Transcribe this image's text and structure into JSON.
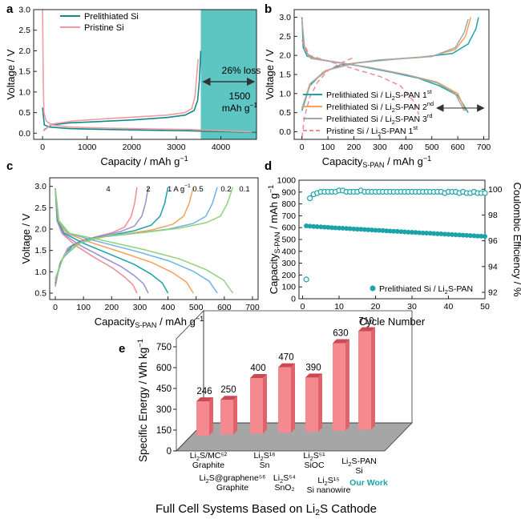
{
  "chart_data": [
    {
      "panel": "a",
      "type": "line",
      "xlabel": "Capacity / mAh g⁻¹",
      "ylabel": "Voltage / V",
      "xlim": [
        -200,
        4800
      ],
      "ylim": [
        -0.15,
        3.0
      ],
      "xticks": [
        0,
        1000,
        2000,
        3000,
        4000
      ],
      "yticks": [
        0.0,
        0.5,
        1.0,
        1.5,
        2.0,
        2.5,
        3.0
      ],
      "legend": "top-left",
      "shaded": {
        "x_range": [
          3550,
          4800
        ],
        "label_top": "26% loss",
        "label_bottom_1": "1500",
        "label_bottom_2": "mAh g⁻¹",
        "color": "#5ec6c2"
      },
      "series": [
        {
          "name": "Prelithiated Si",
          "color": "#0e8a8e",
          "segments": [
            [
              [
                0,
                0.62
              ],
              [
                40,
                0.2
              ],
              [
                150,
                0.15
              ],
              [
                600,
                0.11
              ],
              [
                1500,
                0.09
              ],
              [
                2500,
                0.07
              ],
              [
                3200,
                0.06
              ],
              [
                3550,
                0.05
              ],
              [
                4200,
                0.035
              ],
              [
                4800,
                0.02
              ]
            ],
            [
              [
                30,
                0.08
              ],
              [
                200,
                0.2
              ],
              [
                600,
                0.25
              ],
              [
                1200,
                0.28
              ],
              [
                2000,
                0.32
              ],
              [
                2800,
                0.38
              ],
              [
                3200,
                0.44
              ],
              [
                3400,
                0.55
              ],
              [
                3480,
                0.8
              ],
              [
                3520,
                1.3
              ],
              [
                3550,
                2.0
              ]
            ]
          ]
        },
        {
          "name": "Pristine Si",
          "color": "#f29aa0",
          "segments": [
            [
              [
                0,
                3.0
              ],
              [
                8,
                2.0
              ],
              [
                15,
                1.2
              ],
              [
                30,
                0.5
              ],
              [
                80,
                0.3
              ],
              [
                200,
                0.2
              ],
              [
                600,
                0.15
              ],
              [
                1500,
                0.12
              ],
              [
                2500,
                0.1
              ],
              [
                3300,
                0.09
              ],
              [
                4000,
                0.06
              ],
              [
                4700,
                0.03
              ]
            ],
            [
              [
                20,
                0.05
              ],
              [
                200,
                0.22
              ],
              [
                700,
                0.3
              ],
              [
                1400,
                0.35
              ],
              [
                2200,
                0.4
              ],
              [
                2800,
                0.44
              ],
              [
                3200,
                0.5
              ],
              [
                3350,
                0.6
              ],
              [
                3420,
                0.9
              ],
              [
                3460,
                1.4
              ],
              [
                3490,
                1.8
              ]
            ]
          ]
        }
      ]
    },
    {
      "panel": "b",
      "type": "line",
      "xlabel": "Capacity S-PAN / mAh g⁻¹",
      "ylabel": "Voltage / V",
      "xlim": [
        -30,
        720
      ],
      "ylim": [
        -0.2,
        3.2
      ],
      "xticks": [
        0,
        100,
        200,
        300,
        400,
        500,
        600,
        700
      ],
      "yticks": [
        0.0,
        0.5,
        1.0,
        1.5,
        2.0,
        2.5,
        3.0
      ],
      "legend": "bottom-left",
      "series": [
        {
          "name": "Prelithiated Si / Li₂S-PAN 1st",
          "color": "#1aa3a8",
          "dash": false,
          "segments": [
            [
              [
                0,
                3.0
              ],
              [
                5,
                2.2
              ],
              [
                20,
                1.98
              ],
              [
                80,
                1.88
              ],
              [
                200,
                1.75
              ],
              [
                350,
                1.55
              ],
              [
                450,
                1.4
              ],
              [
                530,
                1.2
              ],
              [
                600,
                0.95
              ],
              [
                640,
                0.5
              ]
            ],
            [
              [
                0,
                0.55
              ],
              [
                30,
                1.2
              ],
              [
                80,
                1.55
              ],
              [
                150,
                1.75
              ],
              [
                300,
                1.88
              ],
              [
                450,
                1.95
              ],
              [
                580,
                2.05
              ],
              [
                640,
                2.3
              ],
              [
                670,
                2.7
              ],
              [
                680,
                3.0
              ]
            ]
          ]
        },
        {
          "name": "Prelithiated Si / Li₂S-PAN 2nd",
          "color": "#f4a25b",
          "dash": false,
          "segments": [
            [
              [
                0,
                2.95
              ],
              [
                10,
                2.2
              ],
              [
                30,
                1.95
              ],
              [
                100,
                1.85
              ],
              [
                250,
                1.7
              ],
              [
                400,
                1.5
              ],
              [
                520,
                1.3
              ],
              [
                600,
                1.0
              ],
              [
                630,
                0.55
              ]
            ],
            [
              [
                0,
                0.6
              ],
              [
                30,
                1.25
              ],
              [
                90,
                1.6
              ],
              [
                200,
                1.8
              ],
              [
                350,
                1.9
              ],
              [
                500,
                1.98
              ],
              [
                590,
                2.15
              ],
              [
                630,
                2.5
              ],
              [
                650,
                3.0
              ]
            ]
          ]
        },
        {
          "name": "Prelithiated Si / Li₂S-PAN 3rd",
          "color": "#9fa8b0",
          "dash": false,
          "segments": [
            [
              [
                0,
                2.9
              ],
              [
                10,
                2.15
              ],
              [
                35,
                1.92
              ],
              [
                110,
                1.84
              ],
              [
                260,
                1.68
              ],
              [
                410,
                1.48
              ],
              [
                520,
                1.28
              ],
              [
                590,
                1.0
              ],
              [
                625,
                0.55
              ]
            ],
            [
              [
                0,
                0.62
              ],
              [
                35,
                1.28
              ],
              [
                100,
                1.62
              ],
              [
                210,
                1.8
              ],
              [
                360,
                1.9
              ],
              [
                500,
                1.97
              ],
              [
                590,
                2.2
              ],
              [
                625,
                2.6
              ],
              [
                640,
                2.95
              ]
            ]
          ]
        },
        {
          "name": "Pristine Si / Li₂S-PAN 1st",
          "color": "#f08a94",
          "dash": true,
          "segments": [
            [
              [
                0,
                2.4
              ],
              [
                30,
                2.0
              ],
              [
                100,
                1.85
              ],
              [
                200,
                1.65
              ],
              [
                300,
                1.45
              ],
              [
                380,
                1.2
              ],
              [
                430,
                0.8
              ],
              [
                450,
                0.45
              ]
            ],
            [
              [
                0,
                -0.15
              ],
              [
                10,
                0.4
              ],
              [
                30,
                0.9
              ],
              [
                60,
                1.3
              ],
              [
                100,
                1.6
              ],
              [
                150,
                1.8
              ],
              [
                200,
                1.95
              ]
            ]
          ]
        }
      ],
      "arrow": {
        "from_x": 520,
        "to_x": 700,
        "y": 0.62
      }
    },
    {
      "panel": "c",
      "type": "line",
      "xlabel": "Capacity S-PAN / mAh g⁻¹",
      "ylabel": "Voltage / V",
      "xlim": [
        -20,
        720
      ],
      "ylim": [
        0.35,
        3.2
      ],
      "xticks": [
        0,
        100,
        200,
        300,
        400,
        500,
        600,
        700
      ],
      "yticks": [
        0.5,
        1.0,
        1.5,
        2.0,
        2.5,
        3.0
      ],
      "rate_labels": [
        "4",
        "2",
        "1 A g⁻¹",
        "0.5",
        "0.2",
        "0.1"
      ],
      "series": [
        {
          "rate": "4",
          "color": "#f08a94",
          "capacity": 290
        },
        {
          "rate": "2",
          "color": "#9a8fd0",
          "capacity": 330
        },
        {
          "rate": "1",
          "color": "#1aa3a8",
          "capacity": 400
        },
        {
          "rate": "0.5",
          "color": "#f4a25b",
          "capacity": 490
        },
        {
          "rate": "0.2",
          "color": "#6fb2e6",
          "capacity": 575
        },
        {
          "rate": "0.1",
          "color": "#8fd27a",
          "capacity": 630
        }
      ]
    },
    {
      "panel": "d",
      "type": "scatter",
      "xlabel": "Cycle Number",
      "ylabel": "Capacity S-PAN / mAh g⁻¹",
      "y2label": "Coulombic Efficiency / %",
      "xlim": [
        -1,
        50
      ],
      "ylim": [
        0,
        1000
      ],
      "y2lim": [
        91.5,
        100.7
      ],
      "xticks": [
        0,
        10,
        20,
        30,
        40,
        50
      ],
      "yticks": [
        0,
        100,
        200,
        300,
        400,
        500,
        600,
        700,
        800,
        900,
        1000
      ],
      "y2ticks": [
        92,
        94,
        96,
        98,
        100
      ],
      "legend": "bottom-right",
      "series": [
        {
          "name": "Prelithiated Si / Li₂S-PAN",
          "color": "#1aa3a8",
          "filled": true,
          "x": [
            1,
            2,
            3,
            4,
            5,
            6,
            7,
            8,
            9,
            10,
            11,
            12,
            13,
            14,
            15,
            16,
            17,
            18,
            19,
            20,
            21,
            22,
            23,
            24,
            25,
            26,
            27,
            28,
            29,
            30,
            31,
            32,
            33,
            34,
            35,
            36,
            37,
            38,
            39,
            40,
            41,
            42,
            43,
            44,
            45,
            46,
            47,
            48,
            49,
            50
          ],
          "y": [
            615,
            612,
            610,
            608,
            606,
            604,
            602,
            600,
            598,
            596,
            595,
            593,
            591,
            589,
            587,
            586,
            584,
            582,
            580,
            578,
            577,
            575,
            573,
            571,
            569,
            568,
            566,
            564,
            562,
            561,
            559,
            557,
            555,
            554,
            552,
            550,
            548,
            547,
            545,
            543,
            541,
            540,
            538,
            536,
            535,
            533,
            531,
            529,
            528,
            526
          ]
        },
        {
          "name": "Coulombic Efficiency",
          "color": "#1aa3a8",
          "filled": false,
          "x": [
            1,
            2,
            3,
            4,
            5,
            6,
            7,
            8,
            9,
            10,
            11,
            12,
            13,
            14,
            15,
            16,
            17,
            18,
            19,
            20,
            21,
            22,
            23,
            24,
            25,
            26,
            27,
            28,
            29,
            30,
            31,
            32,
            33,
            34,
            35,
            36,
            37,
            38,
            39,
            40,
            41,
            42,
            43,
            44,
            45,
            46,
            47,
            48,
            49,
            50
          ],
          "y": [
            93.0,
            99.3,
            99.6,
            99.7,
            99.8,
            99.8,
            99.8,
            99.8,
            99.8,
            99.9,
            99.9,
            99.8,
            99.8,
            99.8,
            99.8,
            99.9,
            99.8,
            99.8,
            99.8,
            99.8,
            99.8,
            99.8,
            99.8,
            99.8,
            99.8,
            99.8,
            99.8,
            99.8,
            99.8,
            99.8,
            99.8,
            99.8,
            99.8,
            99.8,
            99.8,
            99.8,
            99.8,
            99.8,
            99.7,
            99.8,
            99.8,
            99.8,
            99.7,
            99.8,
            99.7,
            99.7,
            99.8,
            99.7,
            99.7,
            99.7
          ]
        }
      ]
    },
    {
      "panel": "e",
      "type": "bar",
      "ylabel": "Specific Energy / Wh kg⁻¹",
      "xlabel": "Full Cell Systems Based on Li₂S Cathode",
      "ylim": [
        0,
        750
      ],
      "yticks": [
        0,
        150,
        300,
        450,
        600,
        750
      ],
      "values": [
        246,
        250,
        400,
        470,
        390,
        630,
        710
      ],
      "categories": [
        {
          "top": "Li₂S/MC⁵²",
          "bottom": "Graphite"
        },
        {
          "top": "Li₂S@graphene⁵⁶",
          "bottom": "Graphite"
        },
        {
          "top": "Li₂S¹⁶",
          "bottom": "Sn"
        },
        {
          "top": "Li₂S⁵⁴",
          "bottom": "SnO₂"
        },
        {
          "top": "Li₂S⁵¹",
          "bottom": "SiOC"
        },
        {
          "top": "Li₂S¹⁵",
          "bottom": "Si nanowire"
        },
        {
          "top": "Li₂S-PAN",
          "bottom": "Si",
          "extra": "Our Work"
        }
      ],
      "bar_color": "#f4898f",
      "highlight_color": "#1aa3a8"
    }
  ],
  "labels": {
    "a": "a",
    "b": "b",
    "c": "c",
    "d": "d",
    "e": "e"
  }
}
